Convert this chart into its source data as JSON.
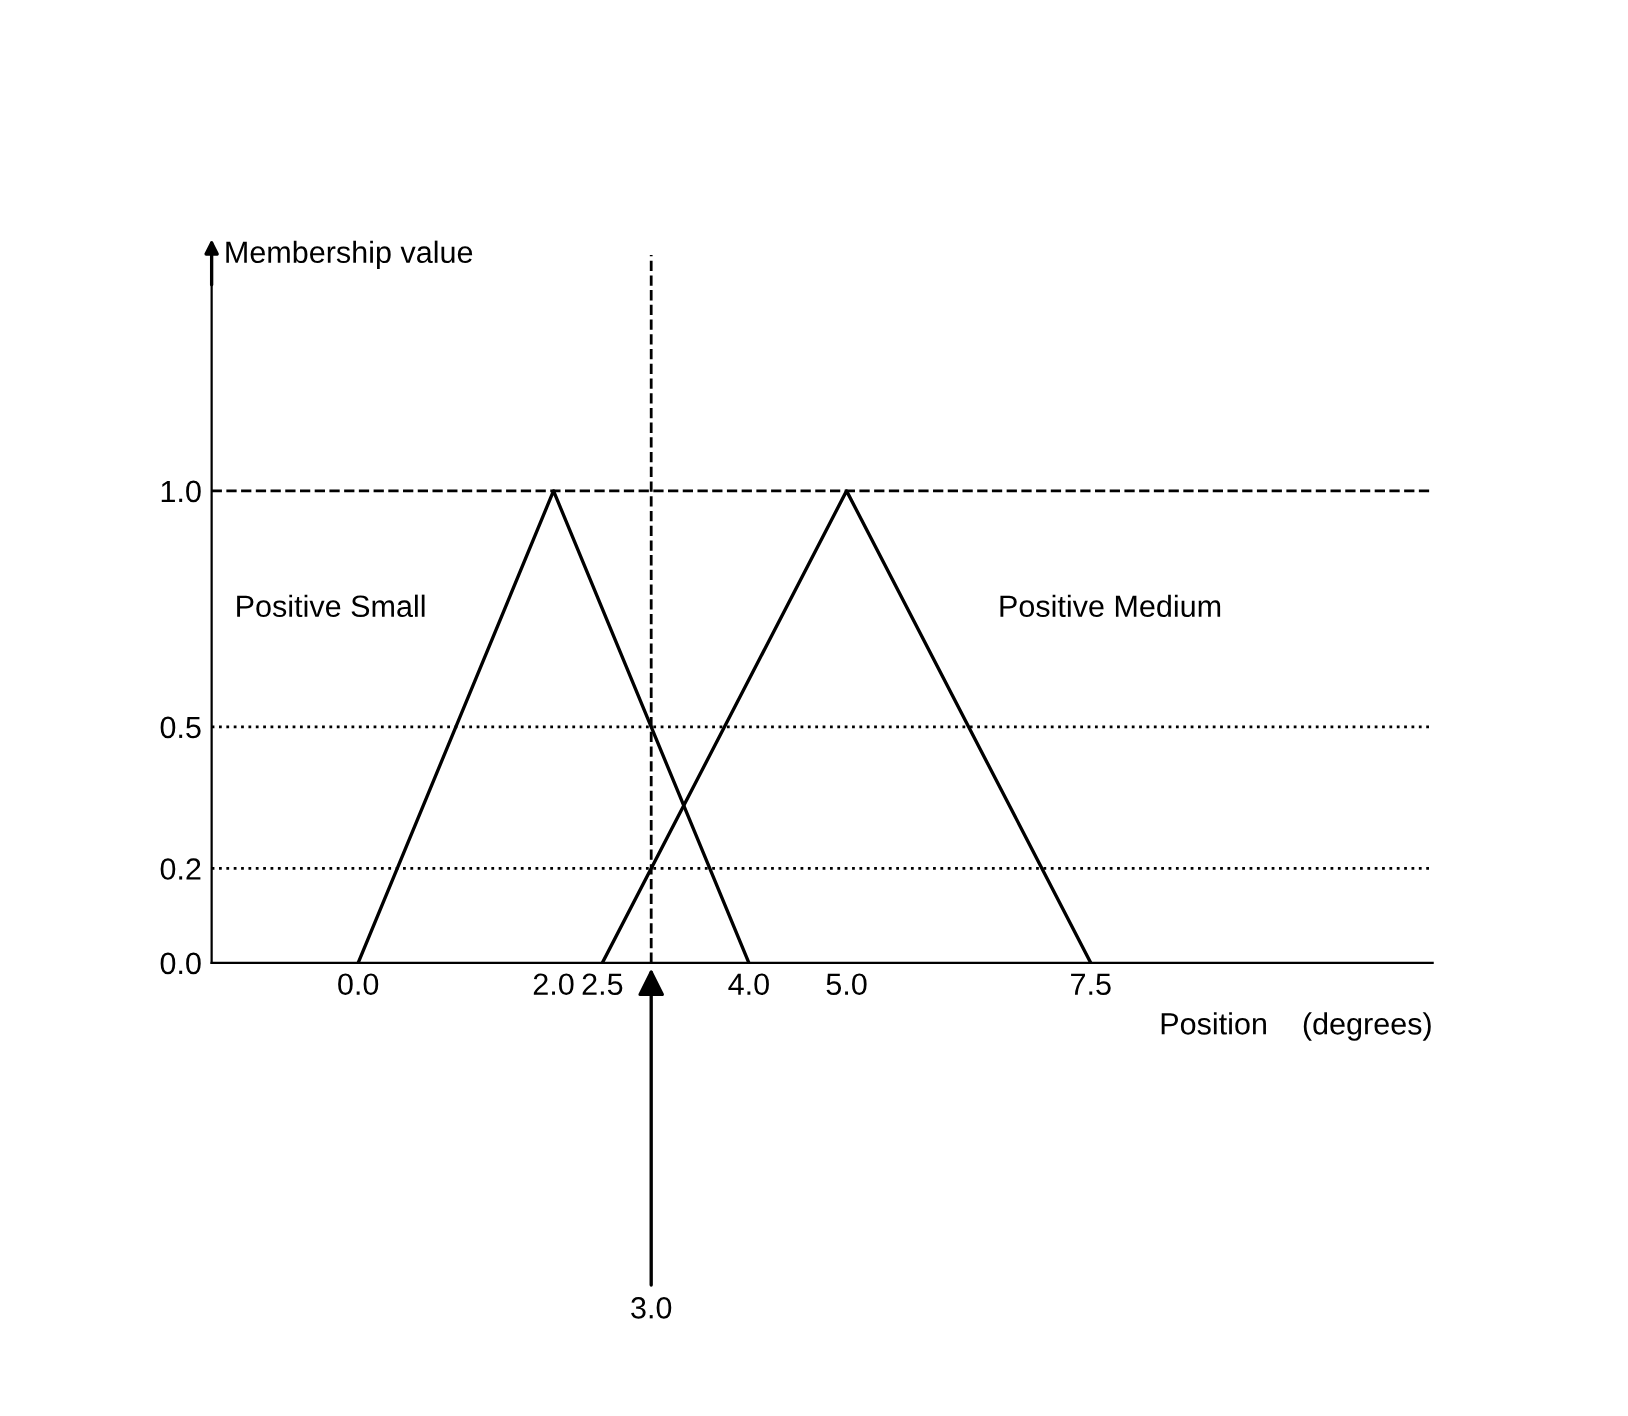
{
  "chart_data": {
    "type": "line",
    "xlabel": "Position    (degrees)",
    "ylabel": "Membership value",
    "xlim": [
      -1.5,
      11
    ],
    "ylim": [
      0,
      1.5
    ],
    "xticks": [
      {
        "value": 0,
        "label": "0.0"
      },
      {
        "value": 2,
        "label": "2.0"
      },
      {
        "value": 2.5,
        "label": "2.5"
      },
      {
        "value": 4,
        "label": "4.0"
      },
      {
        "value": 5,
        "label": "5.0"
      },
      {
        "value": 7.5,
        "label": "7.5"
      }
    ],
    "yticks": [
      {
        "value": 0,
        "label": "0.0"
      },
      {
        "value": 0.2,
        "label": "0.2"
      },
      {
        "value": 0.5,
        "label": "0.5"
      },
      {
        "value": 1,
        "label": "1.0"
      }
    ],
    "series": [
      {
        "name": "Positive Small",
        "color": "#000000",
        "x": [
          0,
          2,
          4
        ],
        "values": [
          0,
          1,
          0
        ]
      },
      {
        "name": "Positive Medium",
        "color": "#000000",
        "x": [
          2.5,
          5,
          7.5
        ],
        "values": [
          0,
          1,
          0
        ]
      }
    ],
    "ref_lines": [
      {
        "axis": "y",
        "value": 1.0,
        "color": "#000000",
        "line_style": "dashed"
      },
      {
        "axis": "y",
        "value": 0.5,
        "color": "#000000",
        "line_style": "dotted"
      },
      {
        "axis": "y",
        "value": 0.2,
        "color": "#000000",
        "line_style": "dotted"
      },
      {
        "axis": "x",
        "value": 3.0,
        "color": "#000000",
        "line_style": "dashed"
      }
    ],
    "annotations": [
      {
        "text": "3.0",
        "x": 3.0,
        "y": 0
      }
    ],
    "grid": false,
    "legend": false,
    "marker": "none",
    "line_style": "solid"
  }
}
